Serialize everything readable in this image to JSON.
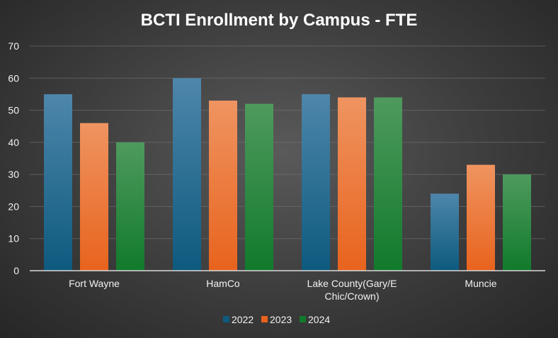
{
  "chart_data": {
    "type": "bar",
    "title": "BCTI Enrollment by Campus - FTE",
    "xlabel": "",
    "ylabel": "",
    "categories": [
      "Fort Wayne",
      "HamCo",
      "Lake County(Gary/E Chic/Crown)",
      "Muncie"
    ],
    "category_lines": [
      [
        "Fort Wayne"
      ],
      [
        "HamCo"
      ],
      [
        "Lake County(Gary/E",
        "Chic/Crown)"
      ],
      [
        "Muncie"
      ]
    ],
    "series": [
      {
        "name": "2022",
        "values": [
          55,
          60,
          55,
          24
        ],
        "color_top": "#4e86ab",
        "color_bottom": "#0d5a7e"
      },
      {
        "name": "2023",
        "values": [
          46,
          53,
          54,
          33
        ],
        "color_top": "#ef9461",
        "color_bottom": "#e8631d"
      },
      {
        "name": "2024",
        "values": [
          40,
          52,
          54,
          30
        ],
        "color_top": "#4f9a5e",
        "color_bottom": "#117a2b"
      }
    ],
    "ylim": [
      0,
      70
    ],
    "yticks": [
      0,
      10,
      20,
      30,
      40,
      50,
      60,
      70
    ],
    "grid": true,
    "legend_position": "bottom"
  }
}
